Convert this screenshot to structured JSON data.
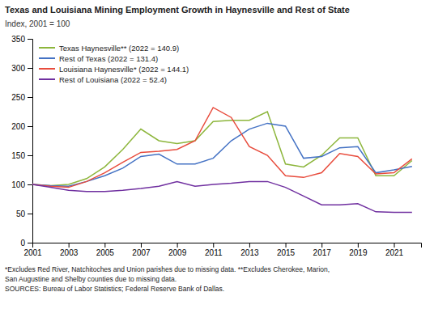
{
  "chart_data": {
    "type": "line",
    "title": "Texas and Louisiana Mining Employment Growth in Haynesville and Rest of State",
    "subtitle": "Index, 2001 = 100",
    "annotations": [
      "*Excludes Red River, Natchitoches and Union parishes due to missing data. **Excludes Cherokee, Marion,",
      "San Augustine and Shelby counties due to missing data.",
      "SOURCES: Bureau of Labor Statistics; Federal Reserve Bank of Dallas."
    ],
    "x": [
      2001,
      2002,
      2003,
      2004,
      2005,
      2006,
      2007,
      2008,
      2009,
      2010,
      2011,
      2012,
      2013,
      2014,
      2015,
      2016,
      2017,
      2018,
      2019,
      2020,
      2021,
      2022
    ],
    "series": [
      {
        "name": "Texas Haynesville** (2022 = 140.9)",
        "color": "#8db63c",
        "values": [
          100,
          98,
          100,
          110,
          130,
          160,
          195,
          175,
          170,
          175,
          208,
          210,
          210,
          225,
          135,
          130,
          150,
          180,
          180,
          115,
          115,
          141
        ]
      },
      {
        "name": "Rest of Texas (2022 = 131.4)",
        "color": "#4472c4",
        "values": [
          100,
          98,
          97,
          105,
          115,
          128,
          148,
          152,
          135,
          135,
          145,
          175,
          195,
          205,
          200,
          145,
          148,
          163,
          165,
          120,
          125,
          131
        ]
      },
      {
        "name": "Louisiana Haynesville* (2022 = 144.1)",
        "color": "#e84c3d",
        "values": [
          100,
          97,
          95,
          105,
          120,
          138,
          155,
          157,
          160,
          175,
          232,
          215,
          165,
          150,
          115,
          112,
          120,
          153,
          148,
          118,
          120,
          144
        ]
      },
      {
        "name": "Rest of Louisiana (2022 = 52.4)",
        "color": "#7030a0",
        "values": [
          100,
          95,
          90,
          88,
          88,
          90,
          93,
          97,
          105,
          97,
          100,
          102,
          105,
          105,
          95,
          80,
          65,
          65,
          67,
          53,
          52,
          52
        ]
      }
    ],
    "xlim": [
      2001,
      2022.5
    ],
    "xticks": [
      2001,
      2003,
      2005,
      2007,
      2009,
      2011,
      2013,
      2015,
      2017,
      2019,
      2021
    ],
    "ylim": [
      0,
      350
    ],
    "yticks": [
      0,
      50,
      100,
      150,
      200,
      250,
      300,
      350
    ],
    "grid": false,
    "legend": "upper left"
  }
}
